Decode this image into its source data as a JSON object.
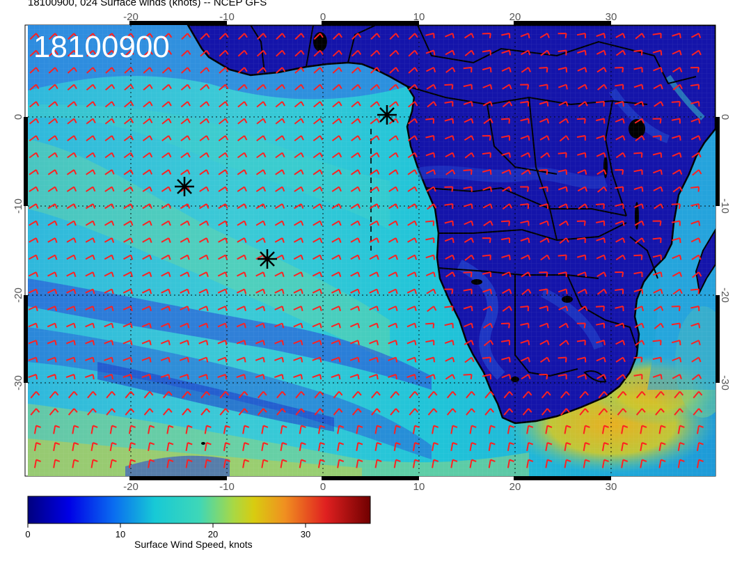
{
  "header": {
    "title": "18100900, 024 Surface winds (knots) -- NCEP GFS"
  },
  "map": {
    "stamp": "18100900",
    "lon_ticks": [
      "-20",
      "-10",
      "0",
      "10",
      "20",
      "30"
    ],
    "lat_ticks": [
      "0",
      "-10",
      "-20",
      "-30"
    ],
    "colors": {
      "ocean_calm": "#2a44d0",
      "ocean_moderate": "#22c8d2",
      "ocean_fresh": "#7ad88a",
      "land": "#1010a8",
      "jet": "#e8b020",
      "barb": "#ff2020",
      "coast": "#000000"
    }
  },
  "colorbar": {
    "label": "Surface Wind Speed, knots",
    "ticks": [
      "0",
      "10",
      "20",
      "30"
    ],
    "range": [
      0,
      37
    ]
  }
}
